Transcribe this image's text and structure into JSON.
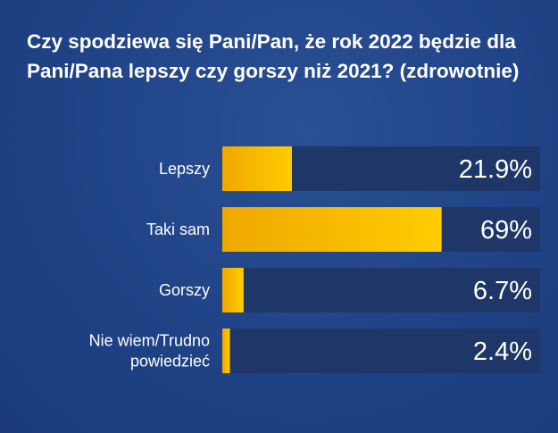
{
  "chart_data": {
    "type": "bar",
    "orientation": "horizontal",
    "title": "Czy spodziewa się Pani/Pan, że rok 2022 będzie dla Pani/Pana lepszy czy gorszy niż 2021? (zdrowotnie)",
    "categories": [
      [
        "Lepszy"
      ],
      [
        "Taki sam"
      ],
      [
        "Gorszy"
      ],
      [
        "Nie wiem/Trudno",
        "powiedzieć"
      ]
    ],
    "values": [
      21.9,
      69,
      6.7,
      2.4
    ],
    "value_labels": [
      "21.9%",
      "69%",
      "6.7%",
      "2.4%"
    ],
    "xlim": [
      0,
      100
    ],
    "colors": {
      "bar": "#ffc400",
      "bar_dark": "#f0a800",
      "track": "#1e3768",
      "text": "#ffffff"
    }
  }
}
